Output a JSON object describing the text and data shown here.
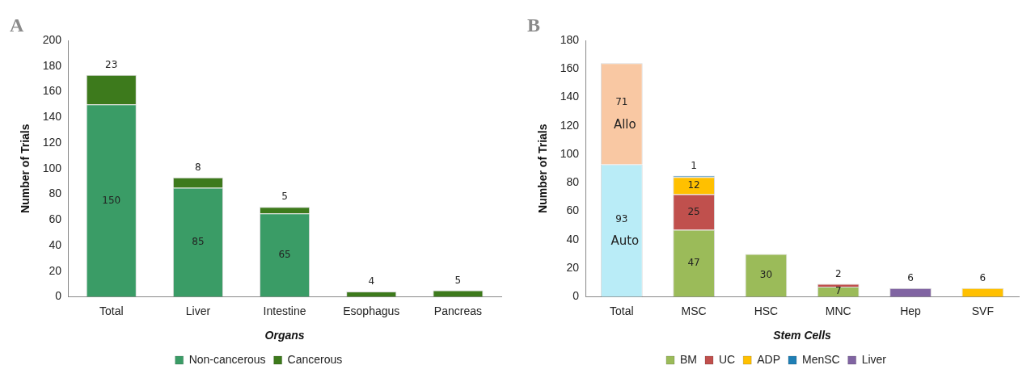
{
  "chart_data": [
    {
      "type": "bar",
      "title": "A",
      "xlabel": "Organs",
      "ylabel": "Number of Trials",
      "stacked": true,
      "legend": "bottom",
      "grid": false,
      "categories": [
        "Total",
        "Liver",
        "Intestine",
        "Esophagus",
        "Pancreas"
      ],
      "ylim": [
        0,
        200
      ],
      "yticks": [
        0,
        20,
        40,
        60,
        80,
        100,
        120,
        140,
        160,
        180,
        200
      ],
      "series": [
        {
          "name": "Non-cancerous",
          "color": "#3a9c66",
          "values": [
            150,
            85,
            65,
            null,
            null
          ],
          "value_labels": [
            "150",
            "85",
            "65",
            null,
            null
          ]
        },
        {
          "name": "Cancerous",
          "color": "#3d7a1c",
          "values": [
            23,
            8,
            5,
            4,
            5
          ],
          "value_labels": [
            "23",
            "8",
            "5",
            "4",
            "5"
          ]
        }
      ]
    },
    {
      "type": "bar",
      "title": "B",
      "xlabel": "Stem Cells",
      "ylabel": "Number of Trials",
      "stacked": true,
      "legend": "bottom",
      "grid": false,
      "categories": [
        "Total",
        "MSC",
        "HSC",
        "MNC",
        "Hep",
        "SVF"
      ],
      "ylim": [
        0,
        180
      ],
      "yticks": [
        0,
        20,
        40,
        60,
        80,
        100,
        120,
        140,
        160,
        180
      ],
      "series": [
        {
          "name": "Auto",
          "color": "#b9ecf7",
          "values": [
            93,
            null,
            null,
            null,
            null,
            null
          ],
          "value_labels": [
            "93",
            null,
            null,
            null,
            null,
            null
          ]
        },
        {
          "name": "Allo",
          "color": "#f9c8a3",
          "values": [
            71,
            null,
            null,
            null,
            null,
            null
          ],
          "value_labels": [
            "71",
            null,
            null,
            null,
            null,
            null
          ]
        },
        {
          "name": "BM",
          "color": "#9bbb59",
          "values": [
            null,
            47,
            30,
            7,
            null,
            null
          ],
          "value_labels": [
            null,
            "47",
            "30",
            "7",
            null,
            null
          ]
        },
        {
          "name": "UC",
          "color": "#c0504d",
          "values": [
            null,
            25,
            null,
            2,
            null,
            null
          ],
          "value_labels": [
            null,
            "25",
            null,
            "2",
            null,
            null
          ]
        },
        {
          "name": "ADP",
          "color": "#ffc000",
          "values": [
            null,
            12,
            null,
            null,
            null,
            6
          ],
          "value_labels": [
            null,
            "12",
            null,
            null,
            null,
            "6"
          ]
        },
        {
          "name": "MenSC",
          "color": "#1f7fb5",
          "values": [
            null,
            1,
            null,
            null,
            null,
            null
          ],
          "value_labels": [
            null,
            "1",
            null,
            null,
            null,
            null
          ]
        },
        {
          "name": "Liver",
          "color": "#8064a2",
          "values": [
            null,
            null,
            null,
            null,
            6,
            null
          ],
          "value_labels": [
            null,
            null,
            null,
            null,
            "6",
            null
          ]
        }
      ]
    }
  ]
}
